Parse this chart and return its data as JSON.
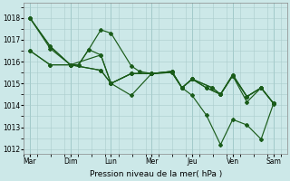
{
  "xlabel": "Pression niveau de la mer( hPa )",
  "bg_color": "#cce8e8",
  "grid_color": "#aacccc",
  "line_color": "#1a5c1a",
  "ylim": [
    1011.8,
    1018.7
  ],
  "yticks": [
    1012,
    1013,
    1014,
    1015,
    1016,
    1017,
    1018
  ],
  "days": [
    "Mar",
    "Dim",
    "Lun",
    "Mer",
    "Jeu",
    "Ven",
    "Sam"
  ],
  "day_positions": [
    0,
    1,
    2,
    3,
    4,
    5,
    6
  ],
  "lines": [
    {
      "x": [
        0,
        0.5,
        1.0,
        1.2,
        1.45,
        1.75,
        2.0,
        2.5,
        3.0,
        3.5,
        3.75,
        4.0,
        4.35,
        4.7,
        5.0,
        5.35,
        5.7,
        6.0
      ],
      "y": [
        1018.0,
        1016.7,
        1015.85,
        1015.85,
        1016.55,
        1016.3,
        1015.0,
        1014.45,
        1015.45,
        1015.55,
        1014.8,
        1014.45,
        1013.55,
        1012.2,
        1013.35,
        1013.1,
        1012.45,
        1014.05
      ]
    },
    {
      "x": [
        0,
        0.5,
        1.0,
        1.2,
        1.45,
        1.75,
        2.0,
        2.5,
        2.7,
        3.0,
        3.5,
        3.75,
        4.0,
        4.35,
        4.7,
        5.0,
        5.35,
        5.7,
        6.0
      ],
      "y": [
        1018.0,
        1016.6,
        1015.85,
        1015.85,
        1016.55,
        1017.45,
        1017.3,
        1015.8,
        1015.55,
        1015.45,
        1015.55,
        1014.8,
        1015.2,
        1014.8,
        1014.5,
        1015.4,
        1014.4,
        1014.8,
        1014.1
      ]
    },
    {
      "x": [
        0,
        0.5,
        1.0,
        1.75,
        2.0,
        2.5,
        3.0,
        3.5,
        3.75,
        4.0,
        4.35,
        4.7,
        5.0,
        5.35,
        5.7,
        6.0
      ],
      "y": [
        1018.0,
        1016.7,
        1015.85,
        1016.3,
        1015.0,
        1015.45,
        1015.45,
        1015.55,
        1014.8,
        1015.2,
        1014.8,
        1014.5,
        1015.4,
        1014.4,
        1014.8,
        1014.1
      ]
    },
    {
      "x": [
        0,
        0.5,
        1.0,
        1.75,
        2.0,
        2.5,
        3.0,
        3.5,
        3.75,
        4.0,
        4.5,
        4.7,
        5.0,
        5.35,
        5.7,
        6.0
      ],
      "y": [
        1016.5,
        1015.85,
        1015.85,
        1015.6,
        1015.0,
        1015.45,
        1015.45,
        1015.5,
        1014.8,
        1015.2,
        1014.8,
        1014.5,
        1015.35,
        1014.4,
        1014.8,
        1014.1
      ]
    },
    {
      "x": [
        0,
        0.5,
        1.0,
        1.75,
        2.0,
        2.5,
        3.0,
        3.5,
        3.75,
        4.0,
        4.5,
        4.7,
        5.0,
        5.35,
        5.7,
        6.0
      ],
      "y": [
        1016.5,
        1015.85,
        1015.85,
        1015.6,
        1015.0,
        1015.45,
        1015.45,
        1015.5,
        1014.8,
        1015.2,
        1014.8,
        1014.5,
        1015.35,
        1014.15,
        1014.8,
        1014.1
      ]
    }
  ]
}
